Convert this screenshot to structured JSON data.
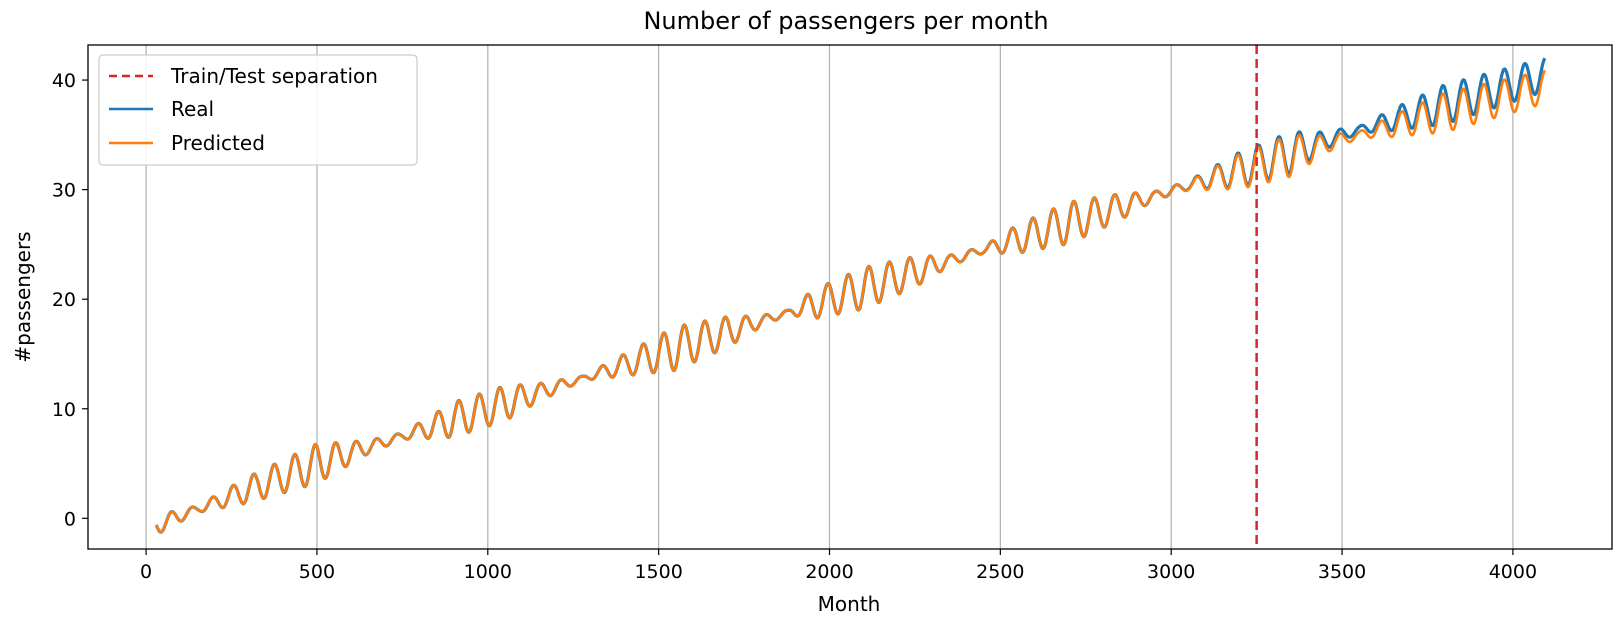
{
  "chart_data": {
    "type": "line",
    "title": "Number of passengers per month",
    "xlabel": "Month",
    "ylabel": "#passengers",
    "xlim": [
      -170,
      4290
    ],
    "ylim": [
      -2.8,
      43.2
    ],
    "xticks": [
      0,
      500,
      1000,
      1500,
      2000,
      2500,
      3000,
      3500,
      4000
    ],
    "yticks": [
      0,
      10,
      20,
      30,
      40
    ],
    "grid": "vertical",
    "legend_position": "top-left",
    "vline": {
      "name": "Train/Test separation",
      "x": 3250,
      "color": "#d62728",
      "style": "dashed"
    },
    "x_range": [
      30,
      4095
    ],
    "series": [
      {
        "name": "Real",
        "color": "#1f77b4",
        "trend": [
          [
            30,
            -0.6
          ],
          [
            500,
            5.0
          ],
          [
            1000,
            10.0
          ],
          [
            1500,
            15.0
          ],
          [
            2000,
            20.0
          ],
          [
            2500,
            25.0
          ],
          [
            3000,
            29.9
          ],
          [
            3250,
            32.3
          ],
          [
            3500,
            35.0
          ],
          [
            4095,
            40.5
          ]
        ],
        "seasonal_period": 60,
        "seasonal_amplitude": [
          [
            30,
            0.9
          ],
          [
            150,
            0.3
          ],
          [
            300,
            1.2
          ],
          [
            500,
            1.8
          ],
          [
            650,
            0.6
          ],
          [
            750,
            0.3
          ],
          [
            900,
            1.6
          ],
          [
            1050,
            1.6
          ],
          [
            1150,
            0.8
          ],
          [
            1280,
            0.2
          ],
          [
            1400,
            1.0
          ],
          [
            1550,
            2.0
          ],
          [
            1700,
            1.4
          ],
          [
            1800,
            0.5
          ],
          [
            1880,
            0.2
          ],
          [
            1950,
            1.3
          ],
          [
            2100,
            1.9
          ],
          [
            2250,
            1.4
          ],
          [
            2350,
            0.5
          ],
          [
            2450,
            0.3
          ],
          [
            2550,
            1.3
          ],
          [
            2700,
            1.9
          ],
          [
            2850,
            1.2
          ],
          [
            2950,
            0.4
          ],
          [
            3050,
            0.4
          ],
          [
            3200,
            1.6
          ],
          [
            3350,
            1.9
          ],
          [
            3450,
            0.8
          ],
          [
            3550,
            0.3
          ],
          [
            3650,
            1.0
          ],
          [
            3800,
            1.8
          ],
          [
            4095,
            1.5
          ]
        ]
      },
      {
        "name": "Predicted",
        "color": "#ff7f0e",
        "trend": [
          [
            30,
            -0.6
          ],
          [
            500,
            5.0
          ],
          [
            1000,
            10.0
          ],
          [
            1500,
            15.0
          ],
          [
            2000,
            20.0
          ],
          [
            2500,
            25.0
          ],
          [
            3000,
            29.9
          ],
          [
            3250,
            32.1
          ],
          [
            3500,
            34.6
          ],
          [
            4095,
            39.4
          ]
        ],
        "seasonal_period": 60,
        "seasonal_amplitude": [
          [
            30,
            0.9
          ],
          [
            150,
            0.3
          ],
          [
            300,
            1.2
          ],
          [
            500,
            1.8
          ],
          [
            650,
            0.6
          ],
          [
            750,
            0.3
          ],
          [
            900,
            1.6
          ],
          [
            1050,
            1.6
          ],
          [
            1150,
            0.8
          ],
          [
            1280,
            0.2
          ],
          [
            1400,
            1.0
          ],
          [
            1550,
            2.0
          ],
          [
            1700,
            1.4
          ],
          [
            1800,
            0.5
          ],
          [
            1880,
            0.2
          ],
          [
            1950,
            1.3
          ],
          [
            2100,
            1.9
          ],
          [
            2250,
            1.4
          ],
          [
            2350,
            0.5
          ],
          [
            2450,
            0.3
          ],
          [
            2550,
            1.3
          ],
          [
            2700,
            1.9
          ],
          [
            2850,
            1.2
          ],
          [
            2950,
            0.4
          ],
          [
            3050,
            0.4
          ],
          [
            3200,
            1.6
          ],
          [
            3350,
            1.9
          ],
          [
            3450,
            0.8
          ],
          [
            3550,
            0.3
          ],
          [
            3650,
            1.0
          ],
          [
            3800,
            1.8
          ],
          [
            4095,
            1.5
          ]
        ]
      }
    ]
  }
}
